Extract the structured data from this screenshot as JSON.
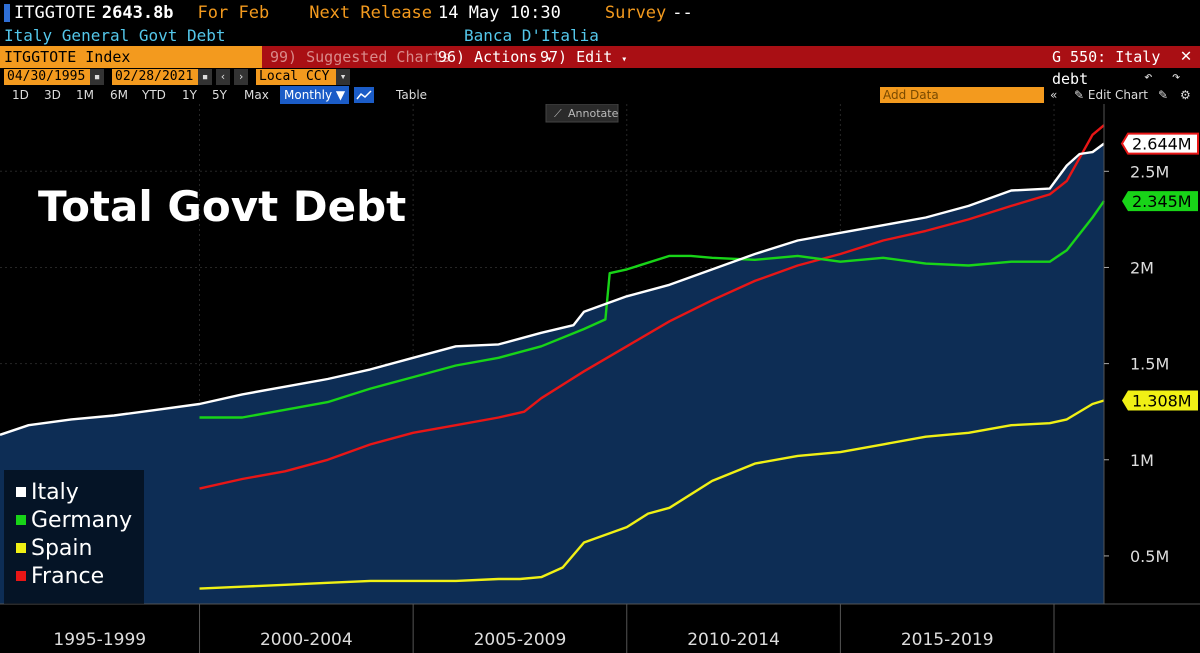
{
  "header": {
    "ticker": "ITGGTOTE",
    "value": "2643.8b",
    "period": "For Feb",
    "next_release_label": "Next Release",
    "next_release": "14 May 10:30",
    "survey_label": "Survey",
    "survey": "--",
    "description": "Italy General Govt Debt",
    "source": "Banca D'Italia"
  },
  "toolbar": {
    "index_label": "ITGGTOTE Index",
    "suggested": "99) Suggested Charts",
    "actions": "96) Actions",
    "edit": "97) Edit",
    "chart_id": "G 550: Italy debt"
  },
  "range": {
    "start": "04/30/1995",
    "end": "02/28/2021",
    "currency": "Local CCY"
  },
  "periods": [
    "1D",
    "3D",
    "1M",
    "6M",
    "YTD",
    "1Y",
    "5Y",
    "Max"
  ],
  "frequency": "Monthly",
  "table_label": "Table",
  "add_data_placeholder": "Add Data",
  "edit_chart": "Edit Chart",
  "annotate_label": "Annotate",
  "colors": {
    "italy": "#ffffff",
    "germany": "#18d418",
    "spain": "#f0f015",
    "france": "#e81616",
    "area": "#0d2d55",
    "amber": "#f39a1e"
  },
  "chart_data": {
    "type": "line",
    "title": "Total Govt Debt",
    "x_labels": [
      "1995-1999",
      "2000-2004",
      "2005-2009",
      "2010-2014",
      "2015-2019"
    ],
    "xlim": [
      1995.33,
      2021.17
    ],
    "ylim": [
      250000,
      2850000
    ],
    "y_ticks": [
      500000,
      1000000,
      1500000,
      2000000,
      2500000
    ],
    "y_tick_labels": [
      "0.5M",
      "1M",
      "1.5M",
      "2M",
      "2.5M"
    ],
    "legend_position": "bottom-left",
    "series": [
      {
        "name": "Italy",
        "color": "#ffffff",
        "last_label": "2.644M",
        "area": true,
        "x": [
          1995.33,
          1996,
          1997,
          1998,
          1999,
          2000,
          2001,
          2002,
          2003,
          2004,
          2005,
          2006,
          2007,
          2008,
          2008.75,
          2009,
          2010,
          2011,
          2012,
          2013,
          2014,
          2015,
          2016,
          2017,
          2018,
          2019,
          2019.9,
          2020.3,
          2020.6,
          2020.9,
          2021.17
        ],
        "y": [
          1130000,
          1180000,
          1210000,
          1230000,
          1260000,
          1290000,
          1340000,
          1380000,
          1420000,
          1470000,
          1530000,
          1590000,
          1600000,
          1660000,
          1700000,
          1770000,
          1850000,
          1910000,
          1990000,
          2070000,
          2140000,
          2180000,
          2220000,
          2260000,
          2320000,
          2400000,
          2410000,
          2530000,
          2590000,
          2600000,
          2644000
        ]
      },
      {
        "name": "Germany",
        "color": "#18d418",
        "last_label": "2.345M",
        "x": [
          2000,
          2001,
          2002,
          2003,
          2004,
          2005,
          2006,
          2007,
          2008,
          2009,
          2009.5,
          2009.6,
          2010,
          2011,
          2011.5,
          2012,
          2013,
          2014,
          2015,
          2016,
          2017,
          2018,
          2019,
          2019.9,
          2020.3,
          2020.9,
          2021.17
        ],
        "y": [
          1220000,
          1220000,
          1260000,
          1300000,
          1370000,
          1430000,
          1490000,
          1530000,
          1590000,
          1680000,
          1730000,
          1970000,
          1990000,
          2060000,
          2060000,
          2050000,
          2040000,
          2060000,
          2030000,
          2050000,
          2020000,
          2010000,
          2030000,
          2030000,
          2090000,
          2260000,
          2345000
        ]
      },
      {
        "name": "Spain",
        "color": "#f0f015",
        "last_label": "1.308M",
        "x": [
          2000,
          2001,
          2002,
          2003,
          2004,
          2005,
          2006,
          2007,
          2007.5,
          2008,
          2008.5,
          2009,
          2010,
          2010.5,
          2011,
          2012,
          2013,
          2014,
          2015,
          2016,
          2017,
          2018,
          2019,
          2019.9,
          2020.3,
          2020.9,
          2021.17
        ],
        "y": [
          330000,
          340000,
          350000,
          360000,
          370000,
          370000,
          370000,
          380000,
          380000,
          390000,
          440000,
          570000,
          650000,
          720000,
          750000,
          890000,
          980000,
          1020000,
          1040000,
          1080000,
          1120000,
          1140000,
          1180000,
          1190000,
          1210000,
          1290000,
          1308000
        ]
      },
      {
        "name": "France",
        "color": "#e81616",
        "last_label": "",
        "x": [
          2000,
          2001,
          2002,
          2003,
          2004,
          2005,
          2006,
          2007,
          2007.6,
          2008,
          2009,
          2010,
          2011,
          2012,
          2013,
          2014,
          2015,
          2016,
          2017,
          2018,
          2019,
          2019.9,
          2020.3,
          2020.9,
          2021.17
        ],
        "y": [
          850000,
          900000,
          940000,
          1000000,
          1080000,
          1140000,
          1180000,
          1220000,
          1250000,
          1320000,
          1460000,
          1590000,
          1720000,
          1830000,
          1930000,
          2010000,
          2070000,
          2140000,
          2190000,
          2250000,
          2320000,
          2380000,
          2450000,
          2690000,
          2740000
        ]
      }
    ]
  }
}
